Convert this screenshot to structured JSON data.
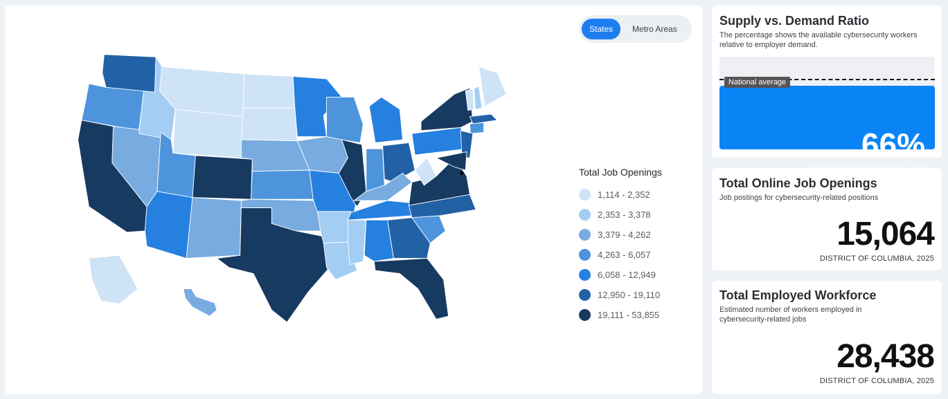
{
  "view_toggle": {
    "states": "States",
    "metro": "Metro Areas",
    "selected": "States"
  },
  "legend": {
    "title": "Total Job Openings",
    "bins": [
      {
        "label": "1,114 - 2,352",
        "color": "#cfe3f7"
      },
      {
        "label": "2,353 - 3,378",
        "color": "#a4cdf3"
      },
      {
        "label": "3,379 - 4,262",
        "color": "#78abe0"
      },
      {
        "label": "4,263 - 6,057",
        "color": "#4d94dc"
      },
      {
        "label": "6,058 - 12,949",
        "color": "#2580e0"
      },
      {
        "label": "12,950 - 19,110",
        "color": "#2361a6"
      },
      {
        "label": "19,111 - 53,855",
        "color": "#173a61"
      }
    ]
  },
  "map_state_bins": {
    "WA": 5,
    "OR": 3,
    "CA": 6,
    "NV": 2,
    "ID": 1,
    "MT": 0,
    "WY": 0,
    "UT": 3,
    "AZ": 4,
    "CO": 6,
    "NM": 2,
    "ND": 0,
    "SD": 0,
    "NE": 2,
    "KS": 3,
    "OK": 2,
    "TX": 6,
    "MN": 4,
    "IA": 2,
    "MO": 4,
    "AR": 1,
    "LA": 1,
    "WI": 3,
    "IL": 6,
    "MI": 4,
    "IN": 3,
    "OH": 5,
    "KY": 2,
    "TN": 4,
    "MS": 1,
    "AL": 4,
    "GA": 5,
    "FL": 6,
    "SC": 3,
    "NC": 5,
    "VA": 6,
    "WV": 0,
    "PA": 4,
    "NY": 6,
    "VT": 0,
    "NH": 1,
    "ME": 0,
    "MA": 5,
    "CT": 3,
    "NJ": 5,
    "MD": 6,
    "AK": 0,
    "HI": 2
  },
  "supply_demand": {
    "title": "Supply vs. Demand Ratio",
    "description": "The percentage shows the available cybersecurity workers relative to employer demand.",
    "national_avg_label": "National average",
    "value_pct": 66,
    "value_text": "66%",
    "footer": "DISTRICT OF COLUMBIA, 2025",
    "fill_color": "#0a84f5"
  },
  "job_openings": {
    "title": "Total Online Job Openings",
    "description": "Job postings for cybersecurity-related positions",
    "value": "15,064",
    "footer": "DISTRICT OF COLUMBIA, 2025"
  },
  "workforce": {
    "title": "Total Employed Workforce",
    "description": "Estimated number of workers employed in cybersecurity-related jobs",
    "value": "28,438",
    "footer": "DISTRICT OF COLUMBIA, 2025"
  }
}
